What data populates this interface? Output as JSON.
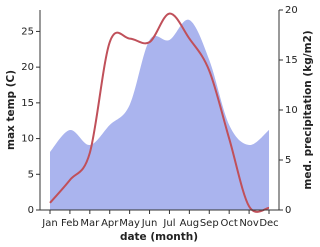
{
  "chart_data": {
    "type": "climate",
    "x_label": "date (month)",
    "y_label": "max temp (C)",
    "y2_label": "med. precipitation (kg/m2)",
    "categories": [
      "Jan",
      "Feb",
      "Mar",
      "Apr",
      "May",
      "Jun",
      "Jul",
      "Aug",
      "Sep",
      "Oct",
      "Nov",
      "Dec"
    ],
    "series": [
      {
        "name": "max temp (C)",
        "kind": "line",
        "color": "#c0505a",
        "values": [
          1,
          4.2,
          8,
          23.5,
          24,
          23.5,
          27.5,
          24,
          19.5,
          10,
          0.5,
          0.3
        ]
      },
      {
        "name": "med. precipitation (kg/m2)",
        "kind": "area",
        "axis": "y2",
        "color": "#aab4ee",
        "values": [
          5.8,
          8,
          6.5,
          8.5,
          10.5,
          17,
          17,
          19,
          15,
          8.5,
          6.5,
          8
        ]
      }
    ],
    "ylim": [
      0,
      28
    ],
    "yticks": [
      0,
      5,
      10,
      15,
      20,
      25
    ],
    "y2lim": [
      0,
      20
    ],
    "y2ticks": [
      0,
      5,
      10,
      15,
      20
    ]
  }
}
